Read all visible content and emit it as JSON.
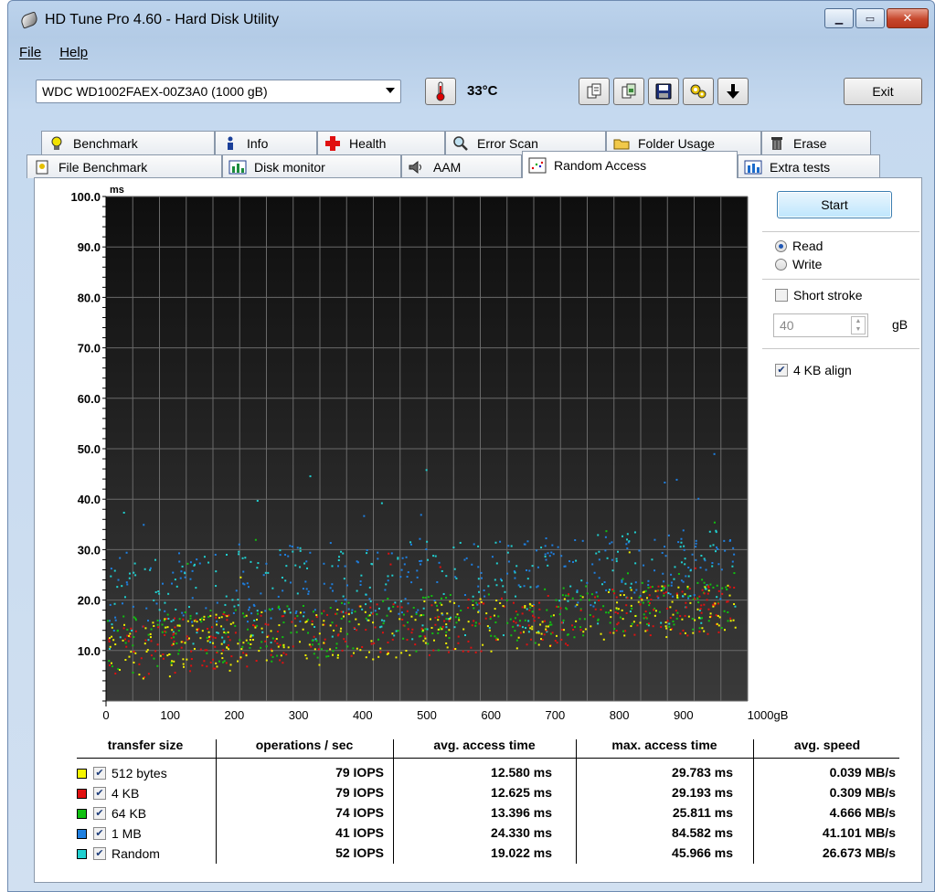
{
  "window": {
    "title": "HD Tune Pro 4.60 - Hard Disk Utility",
    "min_icon": "minimize-icon",
    "max_icon": "maximize-icon",
    "close_icon": "close-icon"
  },
  "menu": [
    "File",
    "Help"
  ],
  "toolbar": {
    "drive": "WDC WD1002FAEX-00Z3A0 (1000 gB)",
    "temperature": "33°C",
    "exit_label": "Exit"
  },
  "tabs": {
    "row1": [
      "Benchmark",
      "Info",
      "Health",
      "Error Scan",
      "Folder Usage",
      "Erase"
    ],
    "row2": [
      "File Benchmark",
      "Disk monitor",
      "AAM",
      "Random Access",
      "Extra tests"
    ],
    "active": "Random Access"
  },
  "controls": {
    "start_label": "Start",
    "read_label": "Read",
    "write_label": "Write",
    "short_stroke_label": "Short stroke",
    "short_stroke_value": "40",
    "short_stroke_unit": "gB",
    "align_label": "4 KB align",
    "read_selected": true,
    "align_checked": true
  },
  "chart_data": {
    "type": "scatter",
    "ylabel": "ms",
    "y_ticks": [
      "100.0",
      "90.0",
      "80.0",
      "70.0",
      "60.0",
      "50.0",
      "40.0",
      "30.0",
      "20.0",
      "10.0"
    ],
    "ylim": [
      0,
      100
    ],
    "x_ticks": [
      "0",
      "100",
      "200",
      "300",
      "400",
      "500",
      "600",
      "700",
      "800",
      "900",
      "1000gB"
    ],
    "xlim": [
      0,
      1000
    ],
    "grid": true,
    "background": "#1a1a1a",
    "series": [
      {
        "name": "512 bytes",
        "color": "#f0f000",
        "x_range": [
          0,
          1000
        ],
        "y_min_at_0": 4,
        "y_max_at_0": 16,
        "y_min_at_1000": 14,
        "y_max_at_1000": 24
      },
      {
        "name": "4 KB",
        "color": "#e01010",
        "x_range": [
          0,
          1000
        ],
        "y_min_at_0": 4,
        "y_max_at_0": 16,
        "y_min_at_1000": 14,
        "y_max_at_1000": 24
      },
      {
        "name": "64 KB",
        "color": "#10c010",
        "x_range": [
          0,
          1000
        ],
        "y_min_at_0": 5,
        "y_max_at_0": 17,
        "y_min_at_1000": 15,
        "y_max_at_1000": 25
      },
      {
        "name": "1 MB",
        "color": "#1e7fe0",
        "x_range": [
          0,
          1000
        ],
        "y_min_at_0": 14,
        "y_max_at_0": 30,
        "y_min_at_1000": 20,
        "y_max_at_1000": 35
      },
      {
        "name": "Random",
        "color": "#20d0d0",
        "x_range": [
          0,
          1000
        ],
        "y_min_at_0": 10,
        "y_max_at_0": 29,
        "y_min_at_1000": 15,
        "y_max_at_1000": 35
      }
    ]
  },
  "results": {
    "headers": [
      "transfer size",
      "operations / sec",
      "avg. access time",
      "max. access time",
      "avg. speed"
    ],
    "rows": [
      {
        "label": "512 bytes",
        "color": "#f5f500",
        "iops": "79 IOPS",
        "avg": "12.580 ms",
        "max": "29.783 ms",
        "speed": "0.039 MB/s"
      },
      {
        "label": "4 KB",
        "color": "#e01010",
        "iops": "79 IOPS",
        "avg": "12.625 ms",
        "max": "29.193 ms",
        "speed": "0.309 MB/s"
      },
      {
        "label": "64 KB",
        "color": "#10c010",
        "iops": "74 IOPS",
        "avg": "13.396 ms",
        "max": "25.811 ms",
        "speed": "4.666 MB/s"
      },
      {
        "label": "1 MB",
        "color": "#1e7fe0",
        "iops": "41 IOPS",
        "avg": "24.330 ms",
        "max": "84.582 ms",
        "speed": "41.101 MB/s"
      },
      {
        "label": "Random",
        "color": "#20d0d0",
        "iops": "52 IOPS",
        "avg": "19.022 ms",
        "max": "45.966 ms",
        "speed": "26.673 MB/s"
      }
    ]
  }
}
